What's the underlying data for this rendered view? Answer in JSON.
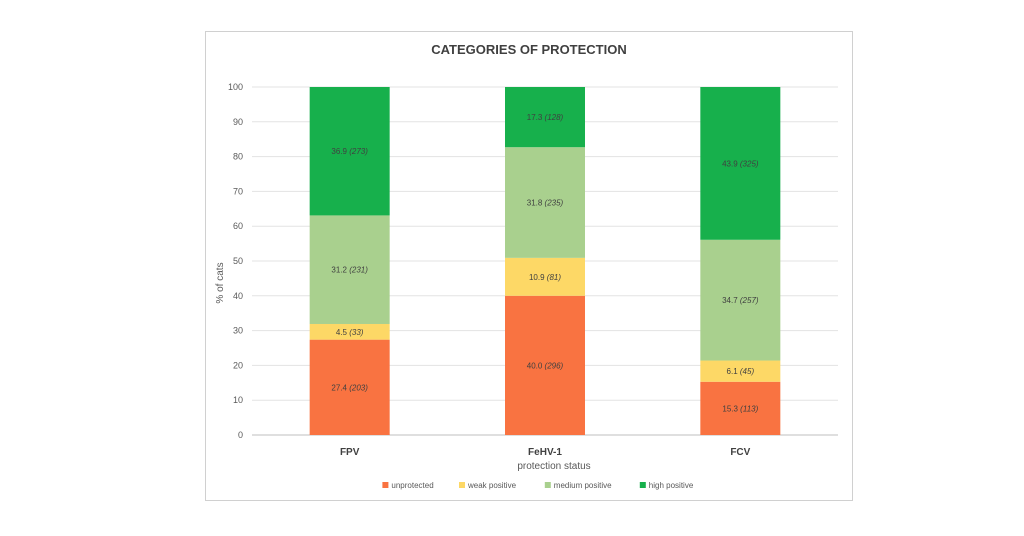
{
  "chart_data": {
    "type": "bar",
    "stacked": true,
    "title": "CATEGORIES OF PROTECTION",
    "xlabel": "protection status",
    "ylabel": "% of cats",
    "ylim": [
      0,
      100
    ],
    "yticks": [
      0,
      10,
      20,
      30,
      40,
      50,
      60,
      70,
      80,
      90,
      100
    ],
    "grid": true,
    "legend_position": "bottom",
    "categories": [
      "FPV",
      "FeHV-1",
      "FCV"
    ],
    "series": [
      {
        "name": "unprotected",
        "color": "#f97341",
        "values": [
          27.4,
          40.0,
          15.3
        ],
        "labels": [
          "27.4",
          "40.0",
          "15.3"
        ],
        "counts": [
          "(203)",
          "(296)",
          "(113)"
        ]
      },
      {
        "name": "weak positive",
        "color": "#fdd866",
        "values": [
          4.5,
          10.9,
          6.1
        ],
        "labels": [
          "4.5",
          "10.9",
          "6.1"
        ],
        "counts": [
          "(33)",
          "(81)",
          "(45)"
        ]
      },
      {
        "name": "medium positive",
        "color": "#a9d08e",
        "values": [
          31.2,
          31.8,
          34.7
        ],
        "labels": [
          "31.2",
          "31.8",
          "34.7"
        ],
        "counts": [
          "(231)",
          "(235)",
          "(257)"
        ]
      },
      {
        "name": "high positive",
        "color": "#17b04c",
        "values": [
          36.9,
          17.3,
          43.9
        ],
        "labels": [
          "36.9",
          "17.3",
          "43.9"
        ],
        "counts": [
          "(273)",
          "(128)",
          "(325)"
        ]
      }
    ]
  }
}
